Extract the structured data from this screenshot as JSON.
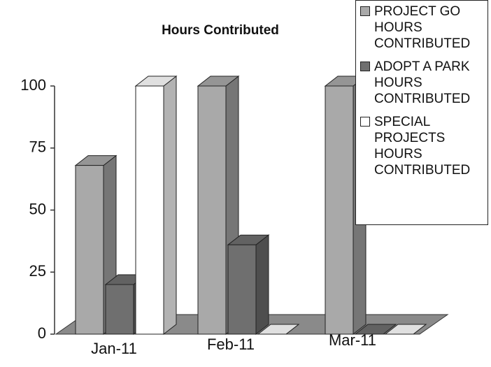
{
  "chart_data": {
    "type": "bar",
    "title": "Hours Contributed",
    "categories": [
      "Jan-11",
      "Feb-11",
      "Mar-11"
    ],
    "series": [
      {
        "name": "PROJECT GO HOURS CONTRIBUTED",
        "color": "#a9a9a9",
        "values": [
          68,
          100,
          100
        ]
      },
      {
        "name": "ADOPT A PARK HOURS CONTRIBUTED",
        "color": "#6f6f6f",
        "values": [
          20,
          36,
          0
        ]
      },
      {
        "name": "SPECIAL PROJECTS HOURS CONTRIBUTED",
        "color": "#ffffff",
        "values": [
          100,
          0,
          0
        ]
      }
    ],
    "ylim": [
      0,
      100
    ],
    "yticks": [
      0,
      25,
      50,
      75,
      100
    ],
    "grid": false,
    "legend": "right"
  }
}
